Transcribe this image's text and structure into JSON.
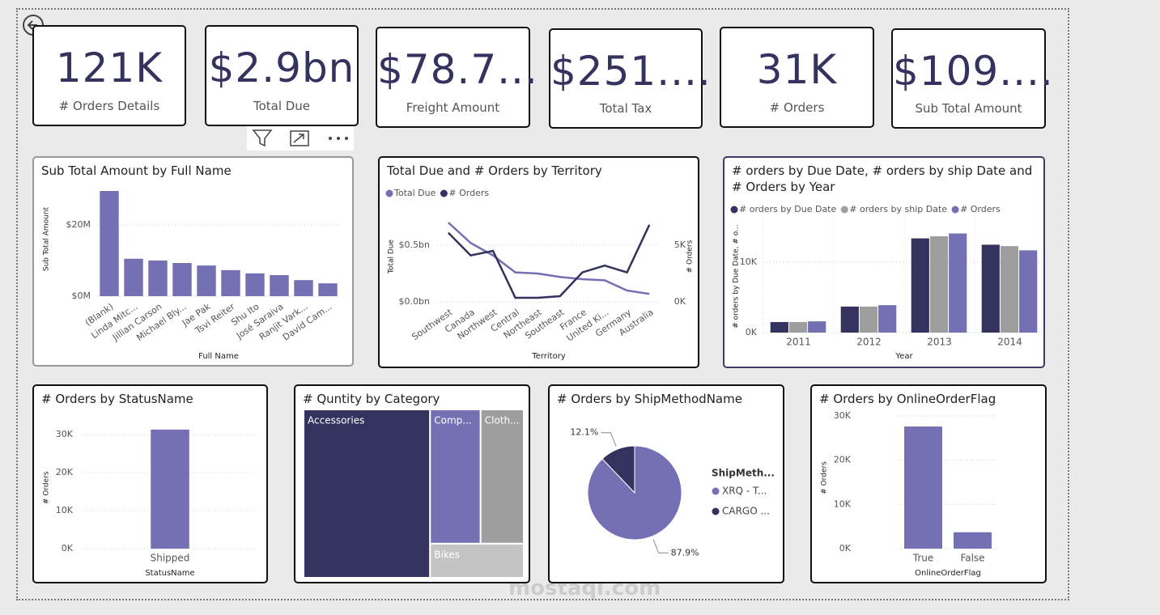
{
  "cards": [
    {
      "value": "121K",
      "label": "# Orders Details"
    },
    {
      "value": "$2.9bn",
      "label": "Total Due"
    },
    {
      "value": "$78.7...",
      "label": "Freight Amount"
    },
    {
      "value": "$251....",
      "label": "Total Tax"
    },
    {
      "value": "31K",
      "label": "# Orders"
    },
    {
      "value": "$109....",
      "label": "Sub Total Amount"
    }
  ],
  "watermark": "mostaql.com",
  "chart_data": [
    {
      "type": "bar",
      "title": "Sub Total Amount by Full Name",
      "x_label": "Full Name",
      "y_label": "Sub Total Amount",
      "categories": [
        "(Blank)",
        "Linda Mitc...",
        "Jillian Carson",
        "Michael Bly...",
        "Jae Pak",
        "Tsvi Reiter",
        "Shu Ito",
        "José Saraiva",
        "Ranjit Vark...",
        "David Cam..."
      ],
      "values": [
        29500000,
        10500000,
        10000000,
        9300000,
        8600000,
        7300000,
        6400000,
        5900000,
        4500000,
        3600000
      ],
      "color": "#7470b3",
      "ylim": [
        0,
        32000000
      ],
      "yticks": [
        {
          "value": 0,
          "label": "$0M"
        },
        {
          "value": 20000000,
          "label": "$20M"
        }
      ],
      "grid": true
    },
    {
      "type": "line",
      "title": "Total Due and # Orders by Territory",
      "x_label": "Territory",
      "y_label": "Total Due",
      "y2_label": "# Orders",
      "categories": [
        "Southwest",
        "Canada",
        "Northwest",
        "Central",
        "Northeast",
        "Southeast",
        "France",
        "United Ki...",
        "Germany",
        "Australia"
      ],
      "series": [
        {
          "name": "Total Due",
          "color": "#7470b3",
          "values": [
            700000000,
            520000000,
            410000000,
            260000000,
            250000000,
            220000000,
            200000000,
            190000000,
            100000000,
            70000000
          ]
        },
        {
          "name": "# Orders",
          "color": "#34325e",
          "axis": "y2",
          "values": [
            6100,
            4100,
            4500,
            360,
            360,
            500,
            2600,
            3200,
            2600,
            6800
          ]
        }
      ],
      "ylim": [
        0,
        800000000
      ],
      "yticks": [
        {
          "value": 0,
          "label": "$0.0bn"
        },
        {
          "value": 500000000,
          "label": "$0.5bn"
        }
      ],
      "y2lim": [
        0,
        8000
      ],
      "y2ticks": [
        {
          "value": 0,
          "label": "0K"
        },
        {
          "value": 5000,
          "label": "5K"
        }
      ],
      "grid": true
    },
    {
      "type": "grouped_bar",
      "title": "# orders by Due Date, # orders by ship Date and # Orders by Year",
      "x_label": "Year",
      "y_label": "# orders by Due Date, # o...",
      "categories": [
        "2011",
        "2012",
        "2013",
        "2014"
      ],
      "series": [
        {
          "name": "# orders by Due Date",
          "color": "#34325e",
          "values": [
            1500,
            3700,
            13400,
            12500
          ]
        },
        {
          "name": "# orders by ship Date",
          "color": "#9e9e9e",
          "values": [
            1500,
            3700,
            13700,
            12300
          ]
        },
        {
          "name": "# Orders",
          "color": "#7470b3",
          "values": [
            1600,
            3900,
            14100,
            11700
          ]
        }
      ],
      "ylim": [
        0,
        16000
      ],
      "yticks": [
        {
          "value": 0,
          "label": "0K"
        },
        {
          "value": 10000,
          "label": "10K"
        }
      ],
      "grid": true
    },
    {
      "type": "bar",
      "title": "# Orders by StatusName",
      "x_label": "StatusName",
      "y_label": "# Orders",
      "categories": [
        "Shipped"
      ],
      "values": [
        31300
      ],
      "color": "#7470b3",
      "ylim": [
        0,
        32000
      ],
      "yticks": [
        {
          "value": 0,
          "label": "0K"
        },
        {
          "value": 10000,
          "label": "10K"
        },
        {
          "value": 20000,
          "label": "20K"
        },
        {
          "value": 30000,
          "label": "30K"
        }
      ],
      "grid": true
    },
    {
      "type": "treemap",
      "title": "# Quntity by Category",
      "categories": [
        "Accessories",
        "Comp...",
        "Cloth...",
        "Bikes"
      ],
      "values": [
        32000,
        10200,
        8700,
        4800
      ],
      "colors": [
        "#34325e",
        "#7470b3",
        "#9e9e9e",
        "#c4c4c4"
      ]
    },
    {
      "type": "pie",
      "title": "# Orders by ShipMethodName",
      "legend_title": "ShipMeth...",
      "categories": [
        "XRQ - T...",
        "CARGO ..."
      ],
      "values": [
        87.9,
        12.1
      ],
      "value_labels": [
        "87.9%",
        "12.1%"
      ],
      "colors": [
        "#7470b3",
        "#34325e"
      ]
    },
    {
      "type": "bar",
      "title": "# Orders by OnlineOrderFlag",
      "x_label": "OnlineOrderFlag",
      "y_label": "# Orders",
      "categories": [
        "True",
        "False"
      ],
      "values": [
        27600,
        3700
      ],
      "color": "#7470b3",
      "ylim": [
        0,
        32000
      ],
      "yticks": [
        {
          "value": 0,
          "label": "0K"
        },
        {
          "value": 10000,
          "label": "10K"
        },
        {
          "value": 20000,
          "label": "20K"
        },
        {
          "value": 30000,
          "label": "30K"
        }
      ],
      "grid": true
    }
  ]
}
